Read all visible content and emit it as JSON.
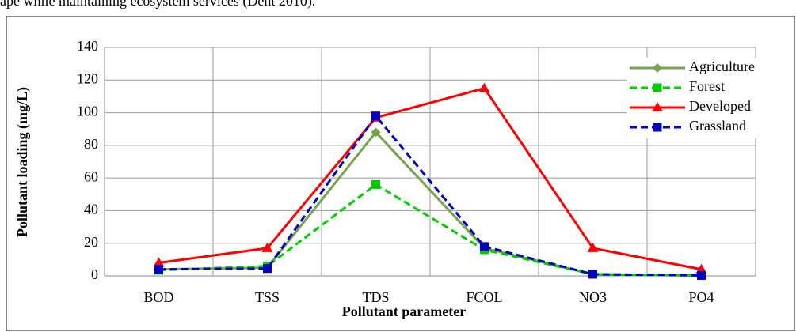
{
  "page_text": "ape while maintaining ecosystem services (Dent 2010).",
  "chart_data": {
    "type": "line",
    "xlabel": "Pollutant parameter",
    "ylabel": "Pollutant loading (mg/L)",
    "categories": [
      "BOD",
      "TSS",
      "TDS",
      "FCOL",
      "NO3",
      "PO4"
    ],
    "series": [
      {
        "name": "Agriculture",
        "color": "#77a34f",
        "dash": false,
        "marker": "diamond",
        "values": [
          4,
          5,
          88,
          17,
          1,
          0.3
        ]
      },
      {
        "name": "Forest",
        "color": "#00cc00",
        "dash": true,
        "marker": "square",
        "values": [
          3.5,
          6,
          56,
          16,
          1,
          0.2
        ]
      },
      {
        "name": "Developed",
        "color": "#ff0000",
        "dash": false,
        "marker": "triangle",
        "values": [
          8,
          17,
          97,
          115,
          17,
          4
        ]
      },
      {
        "name": "Grassland",
        "color": "#0000c0",
        "dash": true,
        "marker": "square",
        "values": [
          4,
          4.5,
          98,
          18,
          1,
          0.3
        ]
      }
    ],
    "ylim": [
      0,
      140
    ],
    "yticks": [
      0,
      20,
      40,
      60,
      80,
      100,
      120,
      140
    ],
    "grid": true,
    "legend": "upper right"
  }
}
